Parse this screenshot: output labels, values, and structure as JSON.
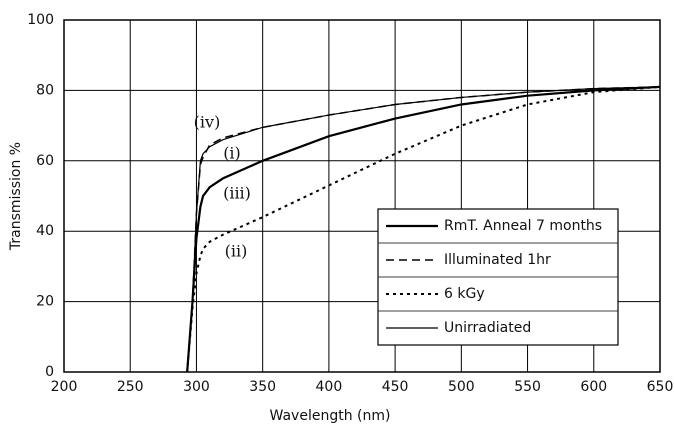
{
  "chart_data": {
    "type": "line",
    "x_label": "Wavelength (nm)",
    "y_label": "Transmission %",
    "x": [
      293,
      297,
      300,
      303,
      305,
      310,
      320,
      350,
      400,
      450,
      500,
      550,
      600,
      650
    ],
    "series": [
      {
        "name": "RmT. Anneal 7 months",
        "color": "#000000",
        "style": "thick",
        "values": [
          0,
          20,
          38,
          47,
          50,
          52.5,
          55,
          60,
          67,
          72,
          76,
          78.5,
          80,
          81
        ]
      },
      {
        "name": "Illuminated 1hr",
        "color": "#000000",
        "style": "dashed",
        "values": [
          0,
          20,
          45,
          59,
          61,
          64.5,
          66.5,
          69.5,
          73,
          76,
          78,
          79.5,
          80.5,
          81
        ]
      },
      {
        "name": "6 kGy",
        "color": "#000000",
        "style": "dotted",
        "values": [
          0,
          18,
          28,
          33,
          35,
          37,
          39,
          44,
          53,
          62,
          70,
          76,
          79.5,
          81
        ]
      },
      {
        "name": "Unirradiated",
        "color": "#000000",
        "style": "thin",
        "values": [
          0,
          20,
          45,
          60,
          62,
          64,
          66,
          69.5,
          73,
          76,
          78,
          79.5,
          80.5,
          81
        ]
      }
    ],
    "annotations": [
      "(iv)",
      "(i)",
      "(iii)",
      "(ii)"
    ],
    "xlim": [
      200,
      650
    ],
    "xticks": [
      200,
      250,
      300,
      350,
      400,
      450,
      500,
      550,
      600,
      650
    ],
    "ylim": [
      0,
      100
    ],
    "yticks": [
      0,
      20,
      40,
      60,
      80,
      100
    ],
    "grid": true,
    "legend": "lower right"
  }
}
